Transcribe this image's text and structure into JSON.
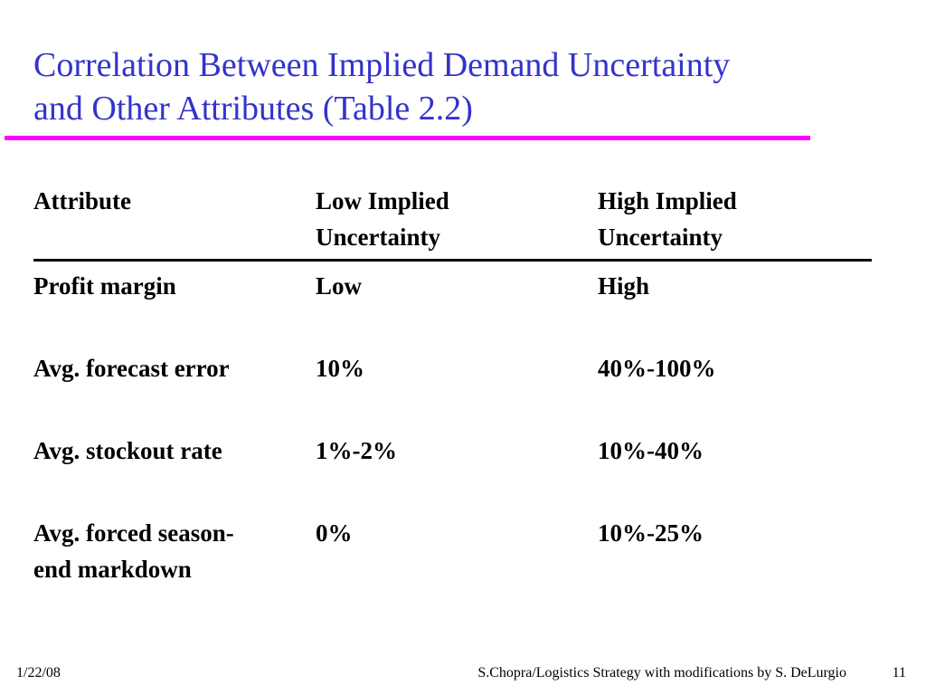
{
  "slide": {
    "title_line1": "Correlation Between Implied Demand Uncertainty",
    "title_line2": "and Other Attributes (Table 2.2)",
    "accent_color": "#3333cc",
    "rule_color": "#ff00ff"
  },
  "table": {
    "headers": [
      {
        "line1": "Attribute",
        "line2": ""
      },
      {
        "line1": "Low Implied",
        "line2": "Uncertainty"
      },
      {
        "line1": "High Implied",
        "line2": "Uncertainty"
      }
    ],
    "rows": [
      {
        "attribute_line1": "Profit margin",
        "attribute_line2": "",
        "low": "Low",
        "high": "High"
      },
      {
        "attribute_line1": "Avg. forecast error",
        "attribute_line2": "",
        "low": "10%",
        "high": "40%-100%"
      },
      {
        "attribute_line1": "Avg. stockout rate",
        "attribute_line2": "",
        "low": "1%-2%",
        "high": "10%-40%"
      },
      {
        "attribute_line1": "Avg. forced season-",
        "attribute_line2": "end markdown",
        "low": "0%",
        "high": "10%-25%"
      }
    ]
  },
  "footer": {
    "date": "1/22/08",
    "credit": "S.Chopra/Logistics Strategy with modifications by S. DeLurgio",
    "page_number": "11"
  }
}
